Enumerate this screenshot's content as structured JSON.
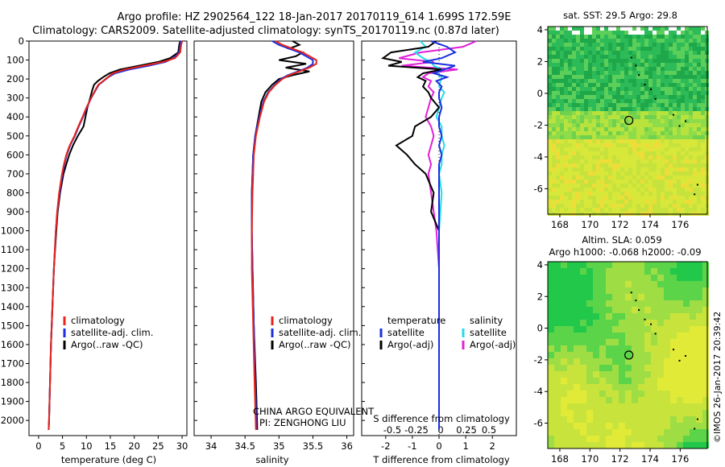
{
  "header": {
    "line1": "Argo profile: HZ 2902564_122 18-Jan-2017 20170119_614 1.699S 172.59E",
    "line2": "Climatology: CARS2009. Satellite-adjusted climatology: synTS_20170119.nc (0.87d later)"
  },
  "colors": {
    "climatology": "#e8241b",
    "satellite": "#1b2fe0",
    "argo": "#000000",
    "satellite_s": "#22dde8",
    "argo_s": "#e020d8"
  },
  "chart_data": [
    {
      "id": "temperature",
      "type": "line",
      "xlabel": "temperature (deg C)",
      "ylabel": "",
      "xlim": [
        -2,
        31
      ],
      "ylim": [
        2080,
        0
      ],
      "xticks": [
        0,
        5,
        10,
        15,
        20,
        25,
        30
      ],
      "yticks": [
        0,
        100,
        200,
        300,
        400,
        500,
        600,
        700,
        800,
        900,
        1000,
        1100,
        1200,
        1300,
        1400,
        1500,
        1600,
        1700,
        1800,
        1900,
        2000
      ],
      "depth": [
        0,
        20,
        60,
        90,
        110,
        130,
        150,
        170,
        190,
        210,
        230,
        260,
        300,
        350,
        400,
        450,
        500,
        550,
        600,
        650,
        700,
        800,
        900,
        1000,
        1200,
        1400,
        1600,
        1800,
        2000,
        2050
      ],
      "series": [
        {
          "name": "climatology",
          "values": [
            30,
            29.8,
            29.6,
            28.5,
            26,
            22,
            18,
            15.5,
            14.5,
            13.5,
            12.5,
            11.8,
            11,
            10,
            9.2,
            8.3,
            7.5,
            6.5,
            5.8,
            5.3,
            4.9,
            4.3,
            3.9,
            3.6,
            3.2,
            2.9,
            2.6,
            2.4,
            2.2,
            2.1
          ]
        },
        {
          "name": "satellite-adj. clim.",
          "values": [
            29.7,
            29.6,
            29.4,
            28.2,
            26.5,
            23,
            19,
            16,
            14.6,
            13.6,
            12.6,
            11.9,
            11,
            10.1,
            9.3,
            8.4,
            7.6,
            6.6,
            5.9,
            5.4,
            5,
            4.4,
            3.9,
            3.6,
            3.2,
            2.9,
            2.6,
            2.4,
            2.2,
            2.1
          ]
        },
        {
          "name": "Argo(..raw -QC)",
          "values": [
            29.6,
            29.4,
            29.2,
            27.5,
            25,
            21,
            17,
            14.8,
            13.5,
            12.4,
            11.6,
            11.2,
            10.8,
            10.2,
            9.8,
            9.4,
            8.2,
            7.2,
            6.4,
            5.8,
            5.2,
            4.5,
            4,
            3.7,
            3.2,
            2.9,
            2.6,
            2.4,
            2.2,
            2.1
          ]
        }
      ],
      "legend": "bottom",
      "legend_labels": [
        "climatology",
        "satellite-adj. clim.",
        "Argo(..raw -QC)"
      ]
    },
    {
      "id": "salinity",
      "type": "line",
      "xlabel": "salinity",
      "xlim": [
        33.75,
        36.1
      ],
      "ylim": [
        2080,
        0
      ],
      "xticks": [
        34,
        34.5,
        35,
        35.5,
        36
      ],
      "depth": [
        0,
        20,
        40,
        60,
        80,
        100,
        120,
        140,
        160,
        180,
        200,
        230,
        270,
        320,
        400,
        500,
        600,
        800,
        1000,
        1200,
        1500,
        1800,
        2050
      ],
      "series": [
        {
          "name": "climatology",
          "values": [
            34.95,
            35.05,
            35.2,
            35.35,
            35.45,
            35.55,
            35.55,
            35.45,
            35.3,
            35.15,
            35.05,
            34.95,
            34.85,
            34.78,
            34.72,
            34.66,
            34.63,
            34.61,
            34.6,
            34.6,
            34.62,
            34.64,
            34.66
          ]
        },
        {
          "name": "satellite-adj. clim.",
          "values": [
            34.9,
            35,
            35.15,
            35.3,
            35.4,
            35.5,
            35.5,
            35.42,
            35.28,
            35.13,
            35.03,
            34.94,
            34.84,
            34.77,
            34.71,
            34.65,
            34.62,
            34.6,
            34.6,
            34.61,
            34.63,
            34.65,
            34.67
          ]
        },
        {
          "name": "Argo(..raw -QC)",
          "values": [
            35.2,
            35.3,
            35.15,
            35.35,
            35.25,
            35.0,
            35.4,
            35.1,
            35.45,
            35.2,
            35.0,
            34.9,
            34.8,
            34.74,
            34.7,
            34.65,
            34.62,
            34.6,
            34.6,
            34.61,
            34.63,
            34.66,
            34.68
          ]
        }
      ],
      "legend_labels": [
        "climatology",
        "satellite-adj. clim.",
        "Argo(..raw -QC)"
      ],
      "annotation": [
        "CHINA ARGO EQUIVALENT",
        "PI: ZENGHONG LIU"
      ]
    },
    {
      "id": "difference",
      "type": "line",
      "xlabel": "T difference from climatology",
      "xlabel_top": "S difference from climatology",
      "xlim": [
        -2.9,
        2.9
      ],
      "ylim": [
        2080,
        0
      ],
      "xticks": [
        -2,
        -1,
        0,
        1,
        2
      ],
      "s_ticks": [
        "-0.5",
        "-0.25",
        "0",
        "0.25",
        "0.5"
      ],
      "depth": [
        0,
        30,
        60,
        90,
        110,
        130,
        150,
        170,
        190,
        210,
        240,
        270,
        300,
        350,
        400,
        450,
        500,
        550,
        600,
        650,
        700,
        800,
        900,
        1000,
        1200,
        1400,
        1600,
        1800,
        2050
      ],
      "series": [
        {
          "name": "temperature satellite",
          "values": [
            -0.3,
            0.3,
            0.6,
            0.1,
            -0.6,
            0.6,
            0.2,
            -0.2,
            0.3,
            -0.1,
            0.1,
            0.0,
            0.0,
            0.1,
            0.0,
            0.0,
            0.1,
            0.0,
            0.1,
            0.0,
            0.0,
            0.0,
            0.0,
            0.0,
            0.0,
            0.0,
            0.0,
            0.0,
            0.0
          ]
        },
        {
          "name": "temperature Argo(-adj)",
          "values": [
            -0.1,
            -0.4,
            -1.8,
            -2.1,
            -1.4,
            -1.9,
            0.1,
            -0.6,
            -0.8,
            -0.5,
            -0.6,
            -0.4,
            -0.3,
            0.0,
            -0.3,
            -0.9,
            -1.0,
            -1.6,
            -1.2,
            -0.9,
            -0.5,
            -0.2,
            -0.3,
            0.0,
            0.0,
            0.0,
            0.0,
            0.0,
            0.0
          ]
        },
        {
          "name": "salinity satellite",
          "values": [
            -0.7,
            -0.5,
            -0.9,
            -0.6,
            -0.3,
            -0.2,
            0.1,
            -0.1,
            0.1,
            0.05,
            0.0,
            0.2,
            0.1,
            0.0,
            -0.1,
            0.1,
            0.1,
            0.2,
            0.1,
            0.1,
            0.0,
            0.1,
            0.05,
            0.0,
            0.0,
            0.0,
            0.0,
            0.0,
            0.0
          ]
        },
        {
          "name": "salinity Argo(-adj)",
          "values": [
            1.4,
            0.9,
            -0.7,
            -1.5,
            -0.2,
            -1.4,
            0.7,
            -0.4,
            -0.6,
            -0.3,
            -0.4,
            -0.2,
            -0.3,
            -0.4,
            -0.5,
            -0.3,
            -0.2,
            -0.3,
            -0.4,
            -0.3,
            -0.4,
            -0.3,
            -0.2,
            -0.1,
            0.0,
            0.0,
            0.0,
            0.0,
            0.0
          ]
        }
      ],
      "legend_headers": [
        "temperature",
        "salinity"
      ],
      "legend_labels": [
        "satellite",
        "Argo(-adj)",
        "satellite",
        "Argo(-adj)"
      ]
    },
    {
      "id": "sst_map",
      "type": "heatmap",
      "title": "sat. SST: 29.5 Argo: 29.8",
      "xticks": [
        168,
        170,
        172,
        174,
        176
      ],
      "yticks": [
        4,
        2,
        0,
        -2,
        -4,
        -6
      ],
      "xlim": [
        167.2,
        177.8
      ],
      "ylim": [
        -7.6,
        4.2
      ],
      "argo_position": [
        172.59,
        -1.699
      ]
    },
    {
      "id": "sla_map",
      "type": "heatmap",
      "title_line1": "Altim. SLA: 0.059",
      "title_line2": "Argo h1000: -0.068 h2000: -0.09",
      "xticks": [
        168,
        170,
        172,
        174,
        176
      ],
      "yticks": [
        4,
        2,
        0,
        -2,
        -4,
        -6
      ],
      "xlim": [
        167.2,
        177.8
      ],
      "ylim": [
        -7.6,
        4.2
      ],
      "argo_position": [
        172.59,
        -1.699
      ]
    }
  ],
  "footer": {
    "credit": "©IMOS 26-Jan-2017 20:39:42"
  }
}
